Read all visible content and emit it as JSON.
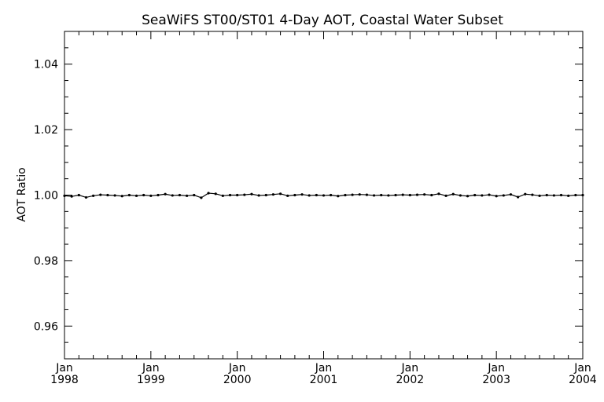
{
  "chart_data": {
    "type": "line",
    "title": "SeaWiFS ST00/ST01 4-Day AOT, Coastal Water Subset",
    "xlabel": "",
    "ylabel": "AOT Ratio",
    "xlim": [
      "1998-01",
      "2004-01"
    ],
    "ylim": [
      0.95,
      1.05
    ],
    "grid": false,
    "legend": "none",
    "yticks": [
      {
        "value": 0.96,
        "label": "0.96"
      },
      {
        "value": 0.98,
        "label": "0.98"
      },
      {
        "value": 1.0,
        "label": "1.00"
      },
      {
        "value": 1.02,
        "label": "1.02"
      },
      {
        "value": 1.04,
        "label": "1.04"
      }
    ],
    "xticks": [
      {
        "value": "1998-01",
        "month": "Jan",
        "year": "1998"
      },
      {
        "value": "1999-01",
        "month": "Jan",
        "year": "1999"
      },
      {
        "value": "2000-01",
        "month": "Jan",
        "year": "2000"
      },
      {
        "value": "2001-01",
        "month": "Jan",
        "year": "2001"
      },
      {
        "value": "2002-01",
        "month": "Jan",
        "year": "2002"
      },
      {
        "value": "2003-01",
        "month": "Jan",
        "year": "2003"
      },
      {
        "value": "2004-01",
        "month": "Jan",
        "year": "2004"
      }
    ],
    "series": [
      {
        "color": "#000000",
        "x": [
          "1998-01",
          "1998-02",
          "1998-03",
          "1998-04",
          "1998-05",
          "1998-06",
          "1998-07",
          "1998-08",
          "1998-09",
          "1998-10",
          "1998-11",
          "1998-12",
          "1999-01",
          "1999-02",
          "1999-03",
          "1999-04",
          "1999-05",
          "1999-06",
          "1999-07",
          "1999-08",
          "1999-09",
          "1999-10",
          "1999-11",
          "1999-12",
          "2000-01",
          "2000-02",
          "2000-03",
          "2000-04",
          "2000-05",
          "2000-06",
          "2000-07",
          "2000-08",
          "2000-09",
          "2000-10",
          "2000-11",
          "2000-12",
          "2001-01",
          "2001-02",
          "2001-03",
          "2001-04",
          "2001-05",
          "2001-06",
          "2001-07",
          "2001-08",
          "2001-09",
          "2001-10",
          "2001-11",
          "2001-12",
          "2002-01",
          "2002-02",
          "2002-03",
          "2002-04",
          "2002-05",
          "2002-06",
          "2002-07",
          "2002-08",
          "2002-09",
          "2002-10",
          "2002-11",
          "2002-12",
          "2003-01",
          "2003-02",
          "2003-03",
          "2003-04",
          "2003-05",
          "2003-06",
          "2003-07",
          "2003-08",
          "2003-09",
          "2003-10",
          "2003-11",
          "2003-12",
          "2004-01"
        ],
        "values": [
          0.9998,
          0.9996,
          1.0,
          0.9993,
          0.9998,
          1.0001,
          1.0,
          0.9999,
          0.9997,
          1.0,
          0.9998,
          1.0,
          0.9998,
          1.0,
          1.0003,
          0.9999,
          1.0,
          0.9998,
          1.0,
          0.9992,
          1.0006,
          1.0004,
          0.9998,
          1.0,
          1.0,
          1.0001,
          1.0003,
          0.9999,
          1.0,
          1.0002,
          1.0004,
          0.9998,
          1.0,
          1.0002,
          0.9999,
          1.0,
          0.9999,
          1.0,
          0.9997,
          1.0,
          1.0001,
          1.0002,
          1.0001,
          0.9999,
          1.0,
          0.9999,
          1.0,
          1.0001,
          1.0,
          1.0001,
          1.0002,
          1.0,
          1.0004,
          0.9998,
          1.0003,
          0.9999,
          0.9997,
          1.0,
          0.9999,
          1.0001,
          0.9997,
          0.9999,
          1.0002,
          0.9994,
          1.0003,
          1.0001,
          0.9998,
          1.0,
          0.9999,
          1.0,
          0.9998,
          1.0,
          1.0
        ]
      }
    ]
  }
}
